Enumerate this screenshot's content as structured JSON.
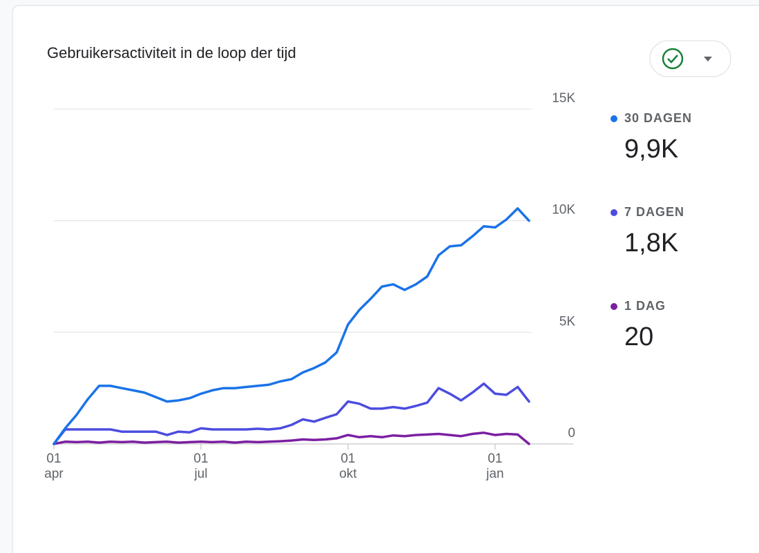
{
  "chart_data": {
    "type": "line",
    "title": "Gebruikersactiviteit in de loop der tijd",
    "categories": [
      "01 apr",
      null,
      null,
      null,
      null,
      null,
      null,
      null,
      null,
      null,
      null,
      null,
      null,
      "01 jul",
      null,
      null,
      null,
      null,
      null,
      null,
      null,
      null,
      null,
      null,
      null,
      null,
      "01 okt",
      null,
      null,
      null,
      null,
      null,
      null,
      null,
      null,
      null,
      null,
      null,
      null,
      "01 jan",
      null,
      null,
      null
    ],
    "series": [
      {
        "name": "30 DAGEN",
        "color": "#1a73e8",
        "summary": 9900,
        "summary_label": "9,9K",
        "values": [
          0,
          700,
          1300,
          2000,
          2600,
          2600,
          2500,
          2400,
          2300,
          2100,
          1900,
          1950,
          2050,
          2250,
          2400,
          2500,
          2500,
          2550,
          2600,
          2650,
          2800,
          2900,
          3200,
          3400,
          3650,
          4100,
          5350,
          6000,
          6500,
          7050,
          7150,
          6900,
          7150,
          7500,
          8450,
          8850,
          8900,
          9300,
          9750,
          9700,
          10050,
          10550,
          10000
        ]
      },
      {
        "name": "7 DAGEN",
        "color": "#4c4ce0",
        "summary": 1800,
        "summary_label": "1,8K",
        "values": [
          0,
          650,
          650,
          650,
          650,
          650,
          550,
          550,
          550,
          550,
          400,
          550,
          520,
          700,
          650,
          650,
          650,
          650,
          680,
          650,
          700,
          850,
          1100,
          1000,
          1170,
          1330,
          1900,
          1800,
          1580,
          1580,
          1650,
          1580,
          1700,
          1850,
          2500,
          2250,
          1950,
          2300,
          2700,
          2250,
          2200,
          2550,
          1900
        ]
      },
      {
        "name": "1 DAG",
        "color": "#7b1fa2",
        "summary": 20,
        "summary_label": "20",
        "values": [
          0,
          100,
          80,
          100,
          60,
          100,
          80,
          100,
          60,
          80,
          100,
          60,
          80,
          100,
          80,
          100,
          60,
          100,
          80,
          100,
          120,
          150,
          200,
          180,
          200,
          250,
          400,
          300,
          350,
          300,
          380,
          350,
          400,
          420,
          450,
          400,
          350,
          450,
          500,
          400,
          450,
          420,
          0
        ]
      }
    ],
    "ylim": [
      0,
      15000
    ],
    "yticks": [
      0,
      {
        "value": 5000,
        "label": "5K"
      },
      {
        "value": 10000,
        "label": "10K"
      },
      {
        "value": 15000,
        "label": "15K"
      }
    ],
    "grid": true
  }
}
